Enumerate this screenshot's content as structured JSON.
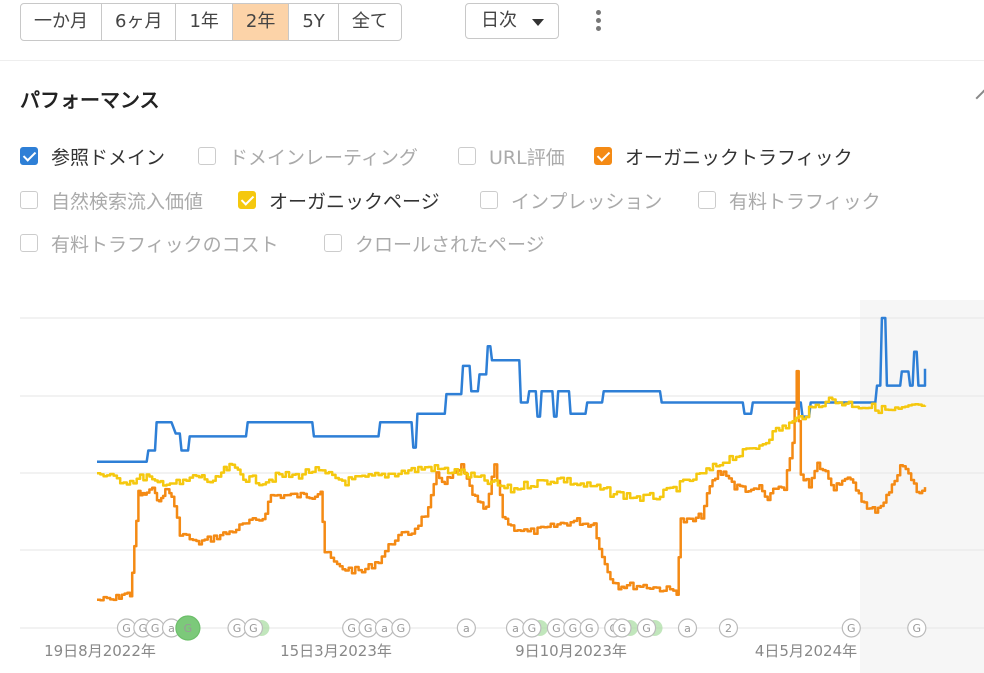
{
  "toolbar": {
    "ranges": [
      {
        "label": "一か月",
        "active": false
      },
      {
        "label": "6ヶ月",
        "active": false
      },
      {
        "label": "1年",
        "active": false
      },
      {
        "label": "2年",
        "active": true
      },
      {
        "label": "5Y",
        "active": false
      },
      {
        "label": "全て",
        "active": false
      }
    ],
    "frequency_label": "日次"
  },
  "section": {
    "title": "パフォーマンス"
  },
  "metrics": [
    {
      "label": "参照ドメイン",
      "checked": true,
      "color": "#2e7fd6"
    },
    {
      "label": "ドメインレーティング",
      "checked": false
    },
    {
      "label": "URL評価",
      "checked": false
    },
    {
      "label": "オーガニックトラフィック",
      "checked": true,
      "color": "#f48a14"
    },
    {
      "label": "自然検索流入価値",
      "checked": false
    },
    {
      "label": "オーガニックページ",
      "checked": true,
      "color": "#f5c80f"
    },
    {
      "label": "インプレッション",
      "checked": false
    },
    {
      "label": "有料トラフィック",
      "checked": false
    },
    {
      "label": "有料トラフィックのコスト",
      "checked": false
    },
    {
      "label": "クロールされたページ",
      "checked": false
    }
  ],
  "chart_data": {
    "type": "line",
    "x_ticks": [
      "19日8月2022年",
      "15日3月2023年",
      "9日10月2023年",
      "4日5月2024年"
    ],
    "grid": true,
    "series": [
      {
        "name": "参照ドメイン",
        "color": "#2e7fd6",
        "shape": "step",
        "points": [
          [
            0,
            0.41
          ],
          [
            0.06,
            0.41
          ],
          [
            0.062,
            0.37
          ],
          [
            0.07,
            0.37
          ],
          [
            0.072,
            0.27
          ],
          [
            0.09,
            0.27
          ],
          [
            0.095,
            0.31
          ],
          [
            0.1,
            0.31
          ],
          [
            0.102,
            0.37
          ],
          [
            0.11,
            0.37
          ],
          [
            0.112,
            0.32
          ],
          [
            0.18,
            0.32
          ],
          [
            0.182,
            0.27
          ],
          [
            0.26,
            0.27
          ],
          [
            0.262,
            0.32
          ],
          [
            0.3,
            0.32
          ],
          [
            0.302,
            0.32
          ],
          [
            0.34,
            0.32
          ],
          [
            0.342,
            0.27
          ],
          [
            0.38,
            0.27
          ],
          [
            0.382,
            0.36
          ],
          [
            0.385,
            0.36
          ],
          [
            0.387,
            0.24
          ],
          [
            0.42,
            0.24
          ],
          [
            0.422,
            0.17
          ],
          [
            0.44,
            0.17
          ],
          [
            0.442,
            0.07
          ],
          [
            0.45,
            0.07
          ],
          [
            0.452,
            0.16
          ],
          [
            0.46,
            0.16
          ],
          [
            0.462,
            0.1
          ],
          [
            0.47,
            0.1
          ],
          [
            0.472,
            0.0
          ],
          [
            0.475,
            0.0
          ],
          [
            0.477,
            0.05
          ],
          [
            0.51,
            0.05
          ],
          [
            0.512,
            0.2
          ],
          [
            0.52,
            0.2
          ],
          [
            0.522,
            0.16
          ],
          [
            0.53,
            0.16
          ],
          [
            0.532,
            0.25
          ],
          [
            0.535,
            0.25
          ],
          [
            0.537,
            0.16
          ],
          [
            0.55,
            0.16
          ],
          [
            0.552,
            0.25
          ],
          [
            0.555,
            0.25
          ],
          [
            0.557,
            0.16
          ],
          [
            0.57,
            0.16
          ],
          [
            0.572,
            0.24
          ],
          [
            0.59,
            0.24
          ],
          [
            0.592,
            0.2
          ],
          [
            0.61,
            0.2
          ],
          [
            0.612,
            0.16
          ],
          [
            0.68,
            0.16
          ],
          [
            0.682,
            0.2
          ],
          [
            0.78,
            0.2
          ],
          [
            0.782,
            0.24
          ],
          [
            0.79,
            0.24
          ],
          [
            0.792,
            0.2
          ],
          [
            0.85,
            0.2
          ],
          [
            0.852,
            0.25
          ],
          [
            0.86,
            0.25
          ],
          [
            0.862,
            0.2
          ],
          [
            0.94,
            0.2
          ],
          [
            0.942,
            0.14
          ],
          [
            0.946,
            0.14
          ],
          [
            0.948,
            -0.1
          ],
          [
            0.952,
            -0.1
          ],
          [
            0.954,
            0.14
          ],
          [
            0.97,
            0.14
          ],
          [
            0.972,
            0.09
          ],
          [
            0.98,
            0.09
          ],
          [
            0.982,
            0.14
          ],
          [
            0.985,
            0.14
          ],
          [
            0.987,
            0.02
          ],
          [
            0.99,
            0.02
          ],
          [
            0.992,
            0.14
          ],
          [
            1.0,
            0.14
          ],
          [
            1.0,
            0.08
          ]
        ]
      },
      {
        "name": "オーガニックトラフィック",
        "color": "#f48a14",
        "shape": "noisy",
        "points": [
          [
            0,
            0.9
          ],
          [
            0.02,
            0.9
          ],
          [
            0.03,
            0.88
          ],
          [
            0.04,
            0.88
          ],
          [
            0.045,
            0.72
          ],
          [
            0.05,
            0.52
          ],
          [
            0.055,
            0.53
          ],
          [
            0.06,
            0.52
          ],
          [
            0.07,
            0.51
          ],
          [
            0.075,
            0.56
          ],
          [
            0.08,
            0.52
          ],
          [
            0.085,
            0.51
          ],
          [
            0.09,
            0.53
          ],
          [
            0.1,
            0.66
          ],
          [
            0.12,
            0.7
          ],
          [
            0.13,
            0.69
          ],
          [
            0.16,
            0.66
          ],
          [
            0.18,
            0.63
          ],
          [
            0.2,
            0.61
          ],
          [
            0.21,
            0.53
          ],
          [
            0.25,
            0.53
          ],
          [
            0.26,
            0.53
          ],
          [
            0.27,
            0.51
          ],
          [
            0.275,
            0.73
          ],
          [
            0.29,
            0.78
          ],
          [
            0.3,
            0.79
          ],
          [
            0.32,
            0.8
          ],
          [
            0.34,
            0.76
          ],
          [
            0.36,
            0.68
          ],
          [
            0.38,
            0.66
          ],
          [
            0.4,
            0.58
          ],
          [
            0.41,
            0.46
          ],
          [
            0.42,
            0.48
          ],
          [
            0.43,
            0.46
          ],
          [
            0.44,
            0.43
          ],
          [
            0.45,
            0.5
          ],
          [
            0.46,
            0.56
          ],
          [
            0.47,
            0.58
          ],
          [
            0.48,
            0.42
          ],
          [
            0.49,
            0.6
          ],
          [
            0.5,
            0.64
          ],
          [
            0.52,
            0.66
          ],
          [
            0.54,
            0.65
          ],
          [
            0.56,
            0.63
          ],
          [
            0.58,
            0.62
          ],
          [
            0.59,
            0.63
          ],
          [
            0.6,
            0.63
          ],
          [
            0.61,
            0.75
          ],
          [
            0.62,
            0.82
          ],
          [
            0.63,
            0.85
          ],
          [
            0.64,
            0.85
          ],
          [
            0.66,
            0.85
          ],
          [
            0.68,
            0.86
          ],
          [
            0.7,
            0.87
          ],
          [
            0.705,
            0.62
          ],
          [
            0.72,
            0.62
          ],
          [
            0.73,
            0.6
          ],
          [
            0.74,
            0.5
          ],
          [
            0.75,
            0.45
          ],
          [
            0.76,
            0.45
          ],
          [
            0.77,
            0.5
          ],
          [
            0.78,
            0.5
          ],
          [
            0.79,
            0.52
          ],
          [
            0.8,
            0.5
          ],
          [
            0.81,
            0.55
          ],
          [
            0.82,
            0.5
          ],
          [
            0.83,
            0.5
          ],
          [
            0.84,
            0.35
          ],
          [
            0.845,
            0.1
          ],
          [
            0.85,
            0.45
          ],
          [
            0.86,
            0.5
          ],
          [
            0.87,
            0.42
          ],
          [
            0.88,
            0.45
          ],
          [
            0.89,
            0.5
          ],
          [
            0.9,
            0.47
          ],
          [
            0.91,
            0.48
          ],
          [
            0.92,
            0.52
          ],
          [
            0.93,
            0.58
          ],
          [
            0.94,
            0.58
          ],
          [
            0.95,
            0.55
          ],
          [
            0.96,
            0.5
          ],
          [
            0.97,
            0.42
          ],
          [
            0.98,
            0.45
          ],
          [
            0.99,
            0.52
          ],
          [
            1.0,
            0.5
          ]
        ]
      },
      {
        "name": "オーガニックページ",
        "color": "#f5c80f",
        "shape": "noisy",
        "points": [
          [
            0,
            0.45
          ],
          [
            0.02,
            0.47
          ],
          [
            0.04,
            0.48
          ],
          [
            0.06,
            0.46
          ],
          [
            0.07,
            0.49
          ],
          [
            0.08,
            0.48
          ],
          [
            0.1,
            0.49
          ],
          [
            0.12,
            0.46
          ],
          [
            0.13,
            0.47
          ],
          [
            0.14,
            0.49
          ],
          [
            0.15,
            0.45
          ],
          [
            0.16,
            0.43
          ],
          [
            0.17,
            0.44
          ],
          [
            0.18,
            0.47
          ],
          [
            0.2,
            0.48
          ],
          [
            0.22,
            0.46
          ],
          [
            0.24,
            0.46
          ],
          [
            0.26,
            0.44
          ],
          [
            0.28,
            0.46
          ],
          [
            0.3,
            0.48
          ],
          [
            0.32,
            0.47
          ],
          [
            0.34,
            0.46
          ],
          [
            0.36,
            0.45
          ],
          [
            0.38,
            0.44
          ],
          [
            0.4,
            0.43
          ],
          [
            0.42,
            0.44
          ],
          [
            0.44,
            0.45
          ],
          [
            0.46,
            0.47
          ],
          [
            0.48,
            0.49
          ],
          [
            0.5,
            0.51
          ],
          [
            0.52,
            0.49
          ],
          [
            0.54,
            0.48
          ],
          [
            0.56,
            0.47
          ],
          [
            0.58,
            0.49
          ],
          [
            0.6,
            0.5
          ],
          [
            0.62,
            0.52
          ],
          [
            0.64,
            0.53
          ],
          [
            0.66,
            0.54
          ],
          [
            0.68,
            0.53
          ],
          [
            0.7,
            0.5
          ],
          [
            0.72,
            0.47
          ],
          [
            0.74,
            0.44
          ],
          [
            0.76,
            0.4
          ],
          [
            0.78,
            0.38
          ],
          [
            0.8,
            0.35
          ],
          [
            0.82,
            0.3
          ],
          [
            0.84,
            0.27
          ],
          [
            0.86,
            0.23
          ],
          [
            0.88,
            0.19
          ],
          [
            0.9,
            0.2
          ],
          [
            0.92,
            0.21
          ],
          [
            0.94,
            0.22
          ],
          [
            0.96,
            0.23
          ],
          [
            0.98,
            0.22
          ],
          [
            1.0,
            0.21
          ]
        ]
      }
    ],
    "annotations": [
      {
        "x": 0.025,
        "type": "G"
      },
      {
        "x": 0.045,
        "type": "G"
      },
      {
        "x": 0.06,
        "type": "G"
      },
      {
        "x": 0.08,
        "type": "a"
      },
      {
        "x": 0.1,
        "type": "G",
        "active": true
      },
      {
        "x": 0.16,
        "type": "G"
      },
      {
        "x": 0.18,
        "type": "G",
        "light": true
      },
      {
        "x": 0.3,
        "type": "G"
      },
      {
        "x": 0.32,
        "type": "G"
      },
      {
        "x": 0.34,
        "type": "a"
      },
      {
        "x": 0.36,
        "type": "G"
      },
      {
        "x": 0.44,
        "type": "a"
      },
      {
        "x": 0.5,
        "type": "a"
      },
      {
        "x": 0.52,
        "type": "G",
        "light": true
      },
      {
        "x": 0.55,
        "type": "G"
      },
      {
        "x": 0.57,
        "type": "G"
      },
      {
        "x": 0.59,
        "type": "G"
      },
      {
        "x": 0.62,
        "type": "G"
      },
      {
        "x": 0.63,
        "type": "G",
        "light": true
      },
      {
        "x": 0.66,
        "type": "G",
        "light": true
      },
      {
        "x": 0.71,
        "type": "a"
      },
      {
        "x": 0.76,
        "type": "2"
      },
      {
        "x": 0.91,
        "type": "G"
      },
      {
        "x": 0.99,
        "type": "G"
      }
    ]
  }
}
